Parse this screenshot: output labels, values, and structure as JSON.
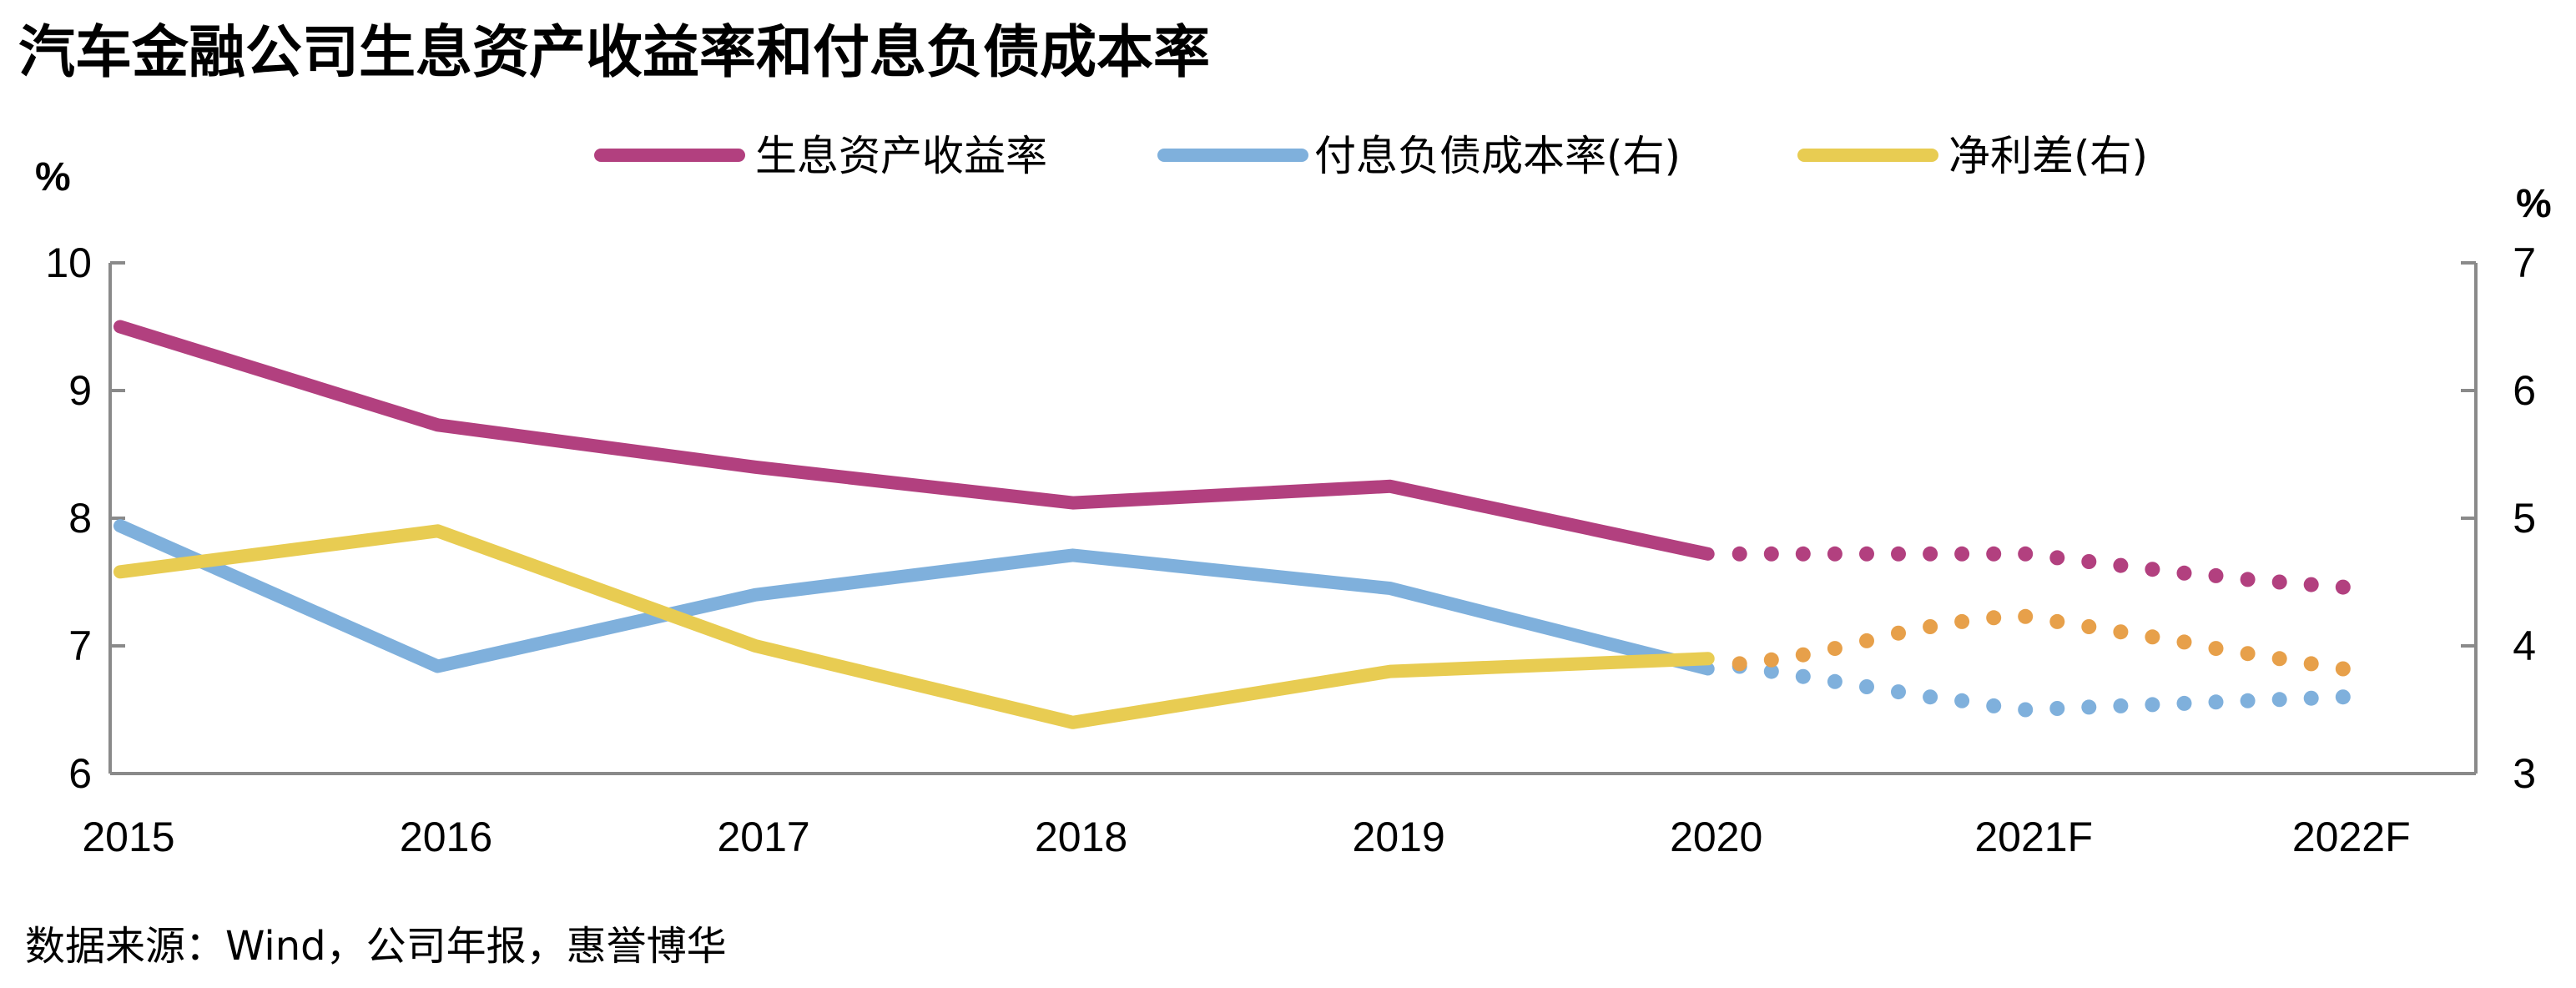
{
  "chart_data": {
    "type": "line",
    "title": "汽车金融公司生息资产收益率和付息负债成本率",
    "source": "数据来源：Wind，公司年报，惠誉博华",
    "left_unit": "%",
    "right_unit": "%",
    "categories": [
      "2015",
      "2016",
      "2017",
      "2018",
      "2019",
      "2020",
      "2021F",
      "2022F"
    ],
    "left_axis": {
      "ylim": [
        6,
        10
      ],
      "ticks": [
        "6",
        "7",
        "8",
        "9",
        "10"
      ]
    },
    "right_axis": {
      "ylim": [
        3,
        7
      ],
      "ticks": [
        "3",
        "4",
        "5",
        "6",
        "7"
      ]
    },
    "legend": {
      "position": "top",
      "items": [
        "生息资产收益率",
        "付息负债成本率(右)",
        "净利差(右)"
      ]
    },
    "series": [
      {
        "name": "生息资产收益率",
        "axis": "left",
        "color": "#b2407f",
        "actual": [
          9.5,
          8.73,
          8.4,
          8.12,
          8.25,
          7.72
        ],
        "forecast_x": [
          5,
          5.1,
          5.2,
          5.3,
          5.4,
          5.5,
          5.6,
          5.7,
          5.8,
          5.9,
          6,
          6.1,
          6.2,
          6.3,
          6.4,
          6.5,
          6.6,
          6.7,
          6.8,
          6.9,
          7
        ],
        "forecast": [
          7.72,
          7.72,
          7.72,
          7.72,
          7.72,
          7.72,
          7.72,
          7.72,
          7.72,
          7.72,
          7.72,
          7.69,
          7.66,
          7.63,
          7.6,
          7.57,
          7.55,
          7.52,
          7.5,
          7.48,
          7.46
        ]
      },
      {
        "name": "付息负债成本率(右)",
        "axis": "right",
        "color": "#7fb0dc",
        "actual": [
          4.94,
          3.84,
          4.4,
          4.71,
          4.45,
          3.82
        ],
        "forecast_x": [
          5,
          5.1,
          5.2,
          5.3,
          5.4,
          5.5,
          5.6,
          5.7,
          5.8,
          5.9,
          6,
          6.1,
          6.2,
          6.3,
          6.4,
          6.5,
          6.6,
          6.7,
          6.8,
          6.9,
          7
        ],
        "forecast": [
          3.88,
          3.84,
          3.8,
          3.76,
          3.72,
          3.68,
          3.64,
          3.6,
          3.57,
          3.53,
          3.5,
          3.51,
          3.52,
          3.53,
          3.54,
          3.55,
          3.56,
          3.57,
          3.58,
          3.59,
          3.6
        ]
      },
      {
        "name": "净利差(右)",
        "axis": "right",
        "color": "#e8cc52",
        "forecast_color": "#e7a04a",
        "actual": [
          4.58,
          4.9,
          4.0,
          3.4,
          3.8,
          3.9
        ],
        "forecast_x": [
          5,
          5.1,
          5.2,
          5.3,
          5.4,
          5.5,
          5.6,
          5.7,
          5.8,
          5.9,
          6,
          6.1,
          6.2,
          6.3,
          6.4,
          6.5,
          6.6,
          6.7,
          6.8,
          6.9,
          7
        ],
        "forecast": [
          3.84,
          3.86,
          3.89,
          3.93,
          3.98,
          4.04,
          4.1,
          4.15,
          4.19,
          4.22,
          4.23,
          4.19,
          4.15,
          4.11,
          4.07,
          4.03,
          3.98,
          3.94,
          3.9,
          3.86,
          3.82
        ]
      }
    ]
  }
}
